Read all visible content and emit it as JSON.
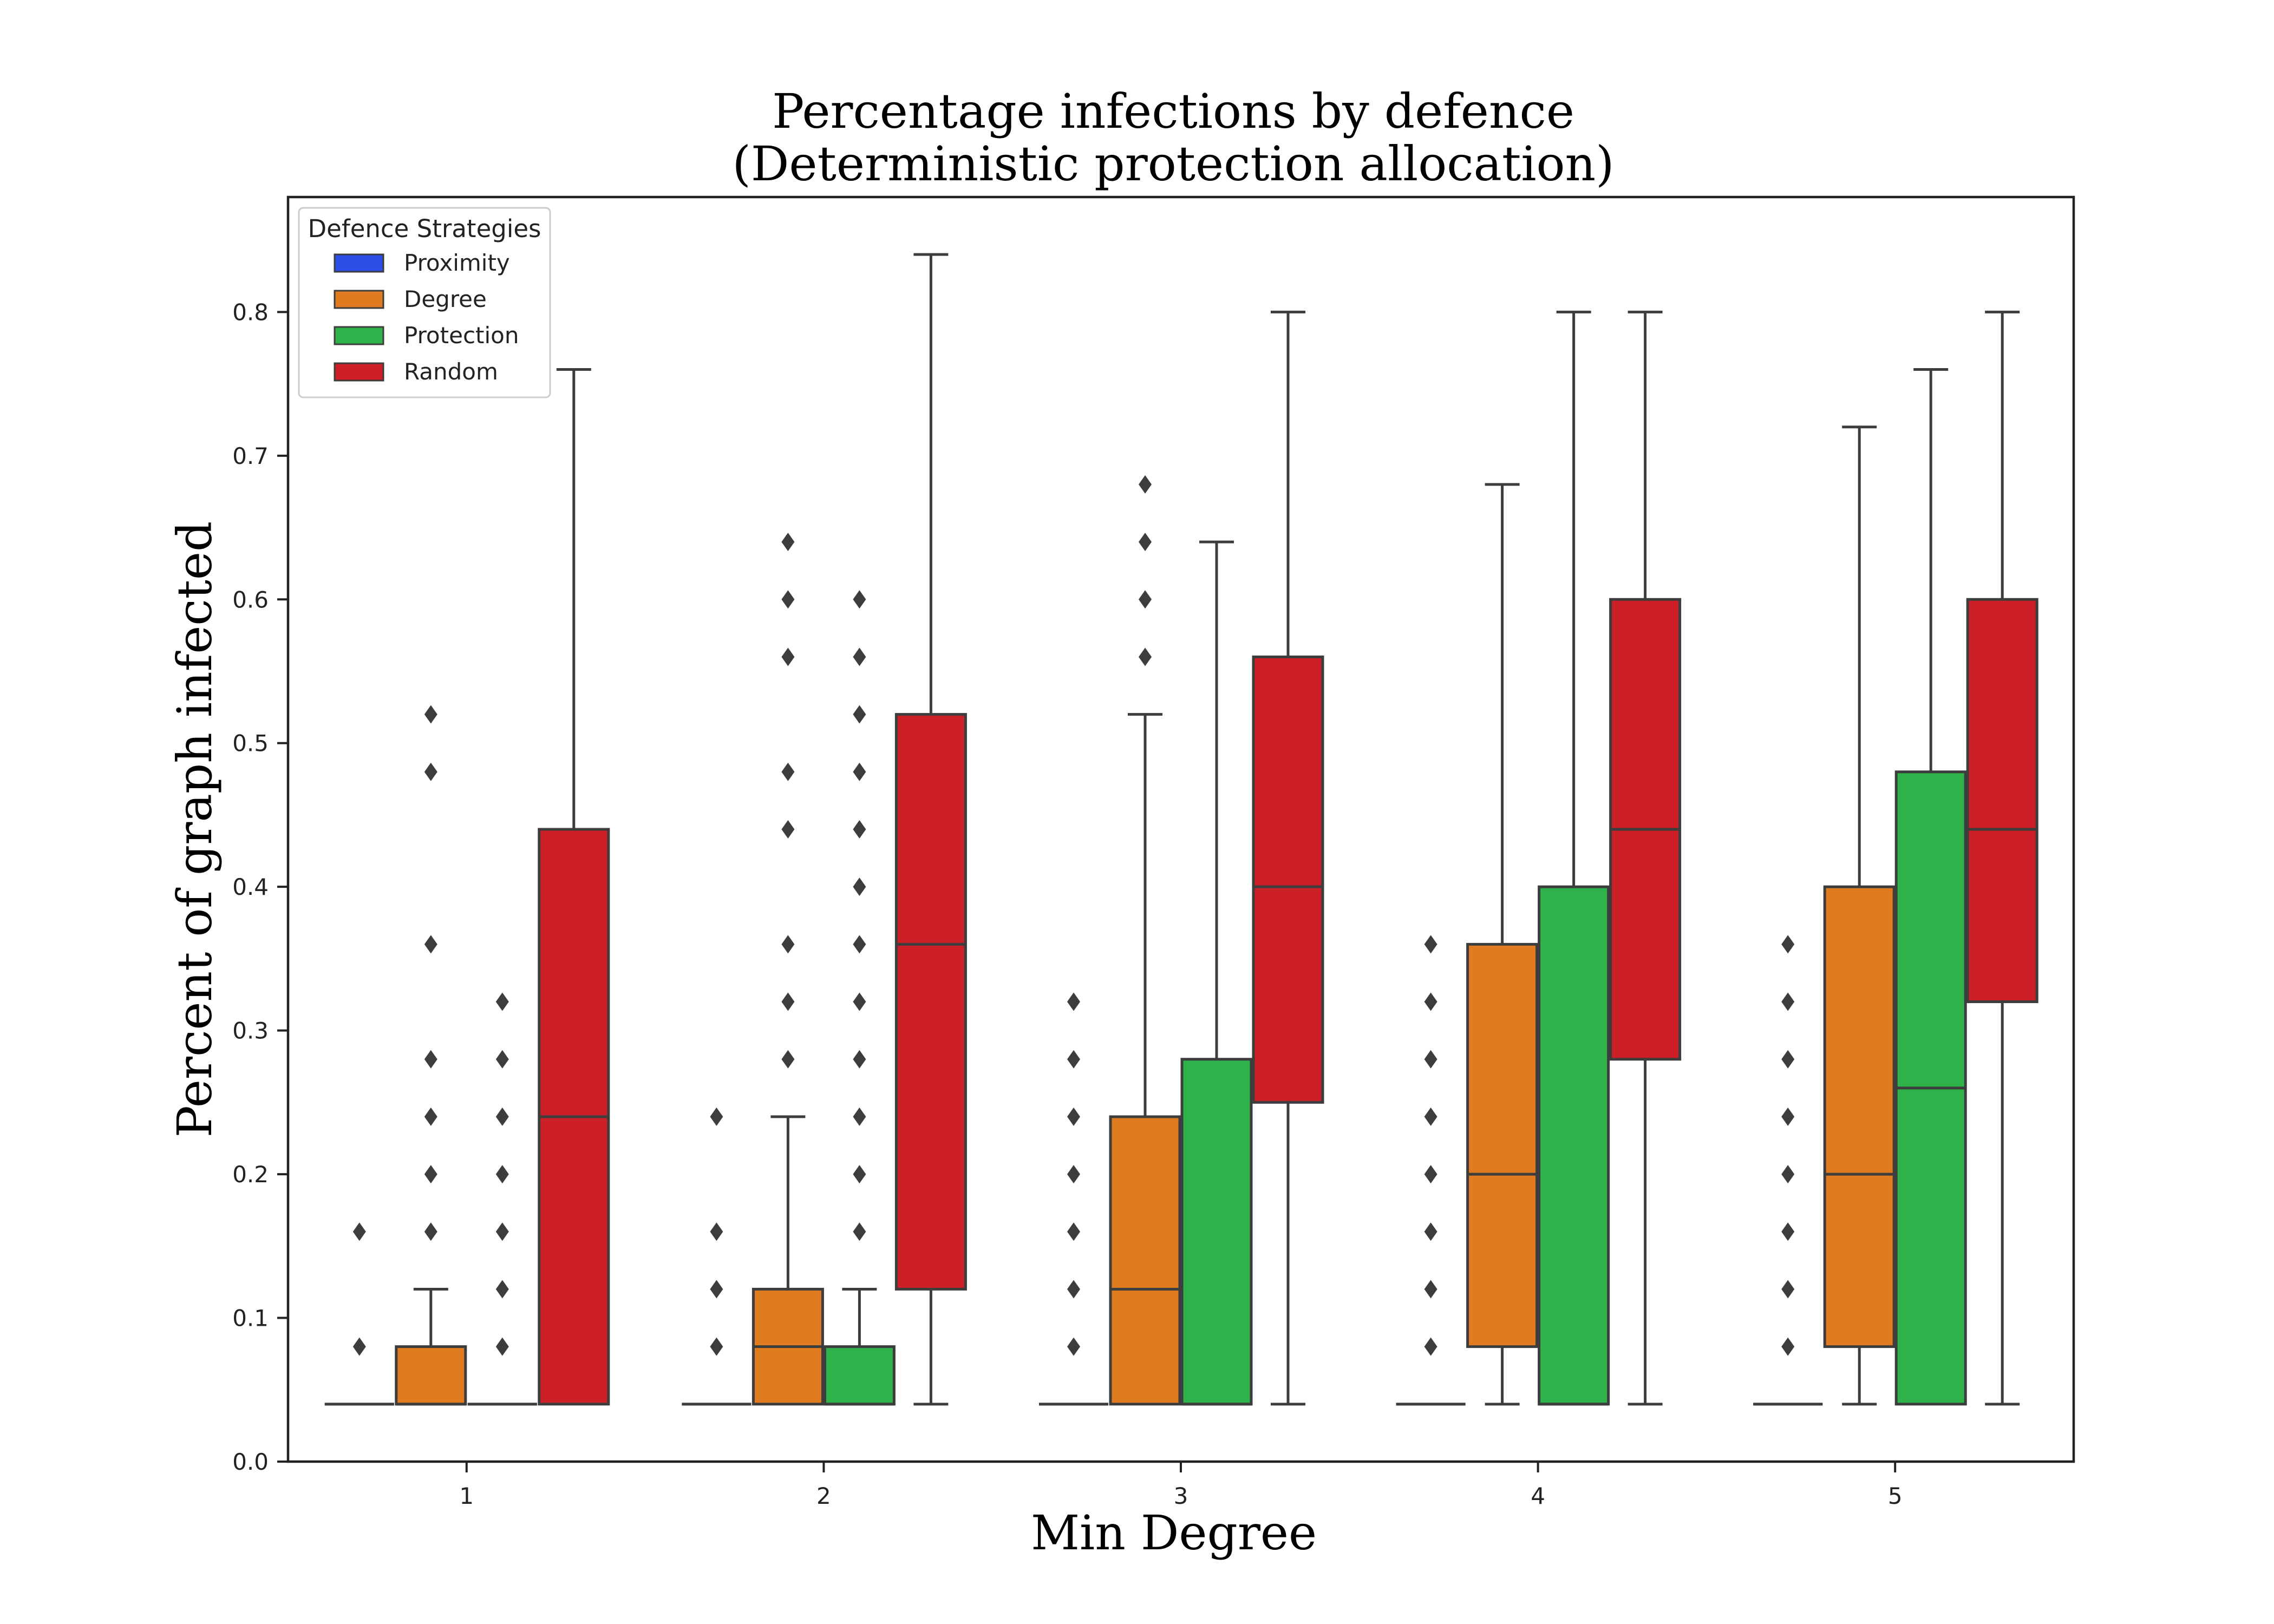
{
  "chart_data": {
    "type": "box",
    "title": "Percentage infections by defence",
    "subtitle": "(Deterministic protection allocation)",
    "xlabel": "Min Degree",
    "ylabel": "Percent of graph infected",
    "categories": [
      "1",
      "2",
      "3",
      "4",
      "5"
    ],
    "ylim": [
      0,
      0.88
    ],
    "yticks": [
      "0.0",
      "0.1",
      "0.2",
      "0.3",
      "0.4",
      "0.5",
      "0.6",
      "0.7",
      "0.8"
    ],
    "legend": {
      "title": "Defence Strategies",
      "position": "top-left",
      "entries": [
        "Proximity",
        "Degree",
        "Protection",
        "Random"
      ]
    },
    "colors": {
      "Proximity": "#2b4ee6",
      "Degree": "#e07b1f",
      "Protection": "#2fb24a",
      "Random": "#cc1f27",
      "box_edge": "#3d3d3d"
    },
    "series": [
      {
        "name": "Proximity",
        "boxes": [
          {
            "q1": 0.04,
            "median": 0.04,
            "q3": 0.04,
            "whislo": 0.04,
            "whishi": 0.04,
            "fliers": [
              0.08,
              0.16
            ]
          },
          {
            "q1": 0.04,
            "median": 0.04,
            "q3": 0.04,
            "whislo": 0.04,
            "whishi": 0.04,
            "fliers": [
              0.08,
              0.12,
              0.16,
              0.24
            ]
          },
          {
            "q1": 0.04,
            "median": 0.04,
            "q3": 0.04,
            "whislo": 0.04,
            "whishi": 0.04,
            "fliers": [
              0.08,
              0.12,
              0.16,
              0.2,
              0.24,
              0.28,
              0.32
            ]
          },
          {
            "q1": 0.04,
            "median": 0.04,
            "q3": 0.04,
            "whislo": 0.04,
            "whishi": 0.04,
            "fliers": [
              0.08,
              0.12,
              0.16,
              0.2,
              0.24,
              0.28,
              0.32,
              0.36
            ]
          },
          {
            "q1": 0.04,
            "median": 0.04,
            "q3": 0.04,
            "whislo": 0.04,
            "whishi": 0.04,
            "fliers": [
              0.08,
              0.12,
              0.16,
              0.2,
              0.24,
              0.28,
              0.32,
              0.36
            ]
          }
        ]
      },
      {
        "name": "Degree",
        "boxes": [
          {
            "q1": 0.04,
            "median": 0.04,
            "q3": 0.08,
            "whislo": 0.04,
            "whishi": 0.12,
            "fliers": [
              0.16,
              0.2,
              0.24,
              0.28,
              0.36,
              0.48,
              0.52
            ]
          },
          {
            "q1": 0.04,
            "median": 0.08,
            "q3": 0.12,
            "whislo": 0.04,
            "whishi": 0.24,
            "fliers": [
              0.28,
              0.32,
              0.36,
              0.44,
              0.48,
              0.56,
              0.6,
              0.64
            ]
          },
          {
            "q1": 0.04,
            "median": 0.12,
            "q3": 0.24,
            "whislo": 0.04,
            "whishi": 0.52,
            "fliers": [
              0.56,
              0.6,
              0.64,
              0.68
            ]
          },
          {
            "q1": 0.08,
            "median": 0.2,
            "q3": 0.36,
            "whislo": 0.04,
            "whishi": 0.68,
            "fliers": []
          },
          {
            "q1": 0.08,
            "median": 0.2,
            "q3": 0.4,
            "whislo": 0.04,
            "whishi": 0.72,
            "fliers": []
          }
        ]
      },
      {
        "name": "Protection",
        "boxes": [
          {
            "q1": 0.04,
            "median": 0.04,
            "q3": 0.04,
            "whislo": 0.04,
            "whishi": 0.04,
            "fliers": [
              0.08,
              0.12,
              0.16,
              0.2,
              0.24,
              0.28,
              0.32
            ]
          },
          {
            "q1": 0.04,
            "median": 0.04,
            "q3": 0.08,
            "whislo": 0.04,
            "whishi": 0.12,
            "fliers": [
              0.16,
              0.2,
              0.24,
              0.28,
              0.32,
              0.36,
              0.4,
              0.44,
              0.48,
              0.52,
              0.56,
              0.6
            ]
          },
          {
            "q1": 0.04,
            "median": 0.04,
            "q3": 0.28,
            "whislo": 0.04,
            "whishi": 0.64,
            "fliers": []
          },
          {
            "q1": 0.04,
            "median": 0.04,
            "q3": 0.4,
            "whislo": 0.04,
            "whishi": 0.8,
            "fliers": []
          },
          {
            "q1": 0.04,
            "median": 0.26,
            "q3": 0.48,
            "whislo": 0.04,
            "whishi": 0.76,
            "fliers": []
          }
        ]
      },
      {
        "name": "Random",
        "boxes": [
          {
            "q1": 0.04,
            "median": 0.24,
            "q3": 0.44,
            "whislo": 0.04,
            "whishi": 0.76,
            "fliers": []
          },
          {
            "q1": 0.12,
            "median": 0.36,
            "q3": 0.52,
            "whislo": 0.04,
            "whishi": 0.84,
            "fliers": []
          },
          {
            "q1": 0.25,
            "median": 0.4,
            "q3": 0.56,
            "whislo": 0.04,
            "whishi": 0.8,
            "fliers": []
          },
          {
            "q1": 0.28,
            "median": 0.44,
            "q3": 0.6,
            "whislo": 0.04,
            "whishi": 0.8,
            "fliers": []
          },
          {
            "q1": 0.32,
            "median": 0.44,
            "q3": 0.6,
            "whislo": 0.04,
            "whishi": 0.8,
            "fliers": []
          }
        ]
      }
    ]
  }
}
